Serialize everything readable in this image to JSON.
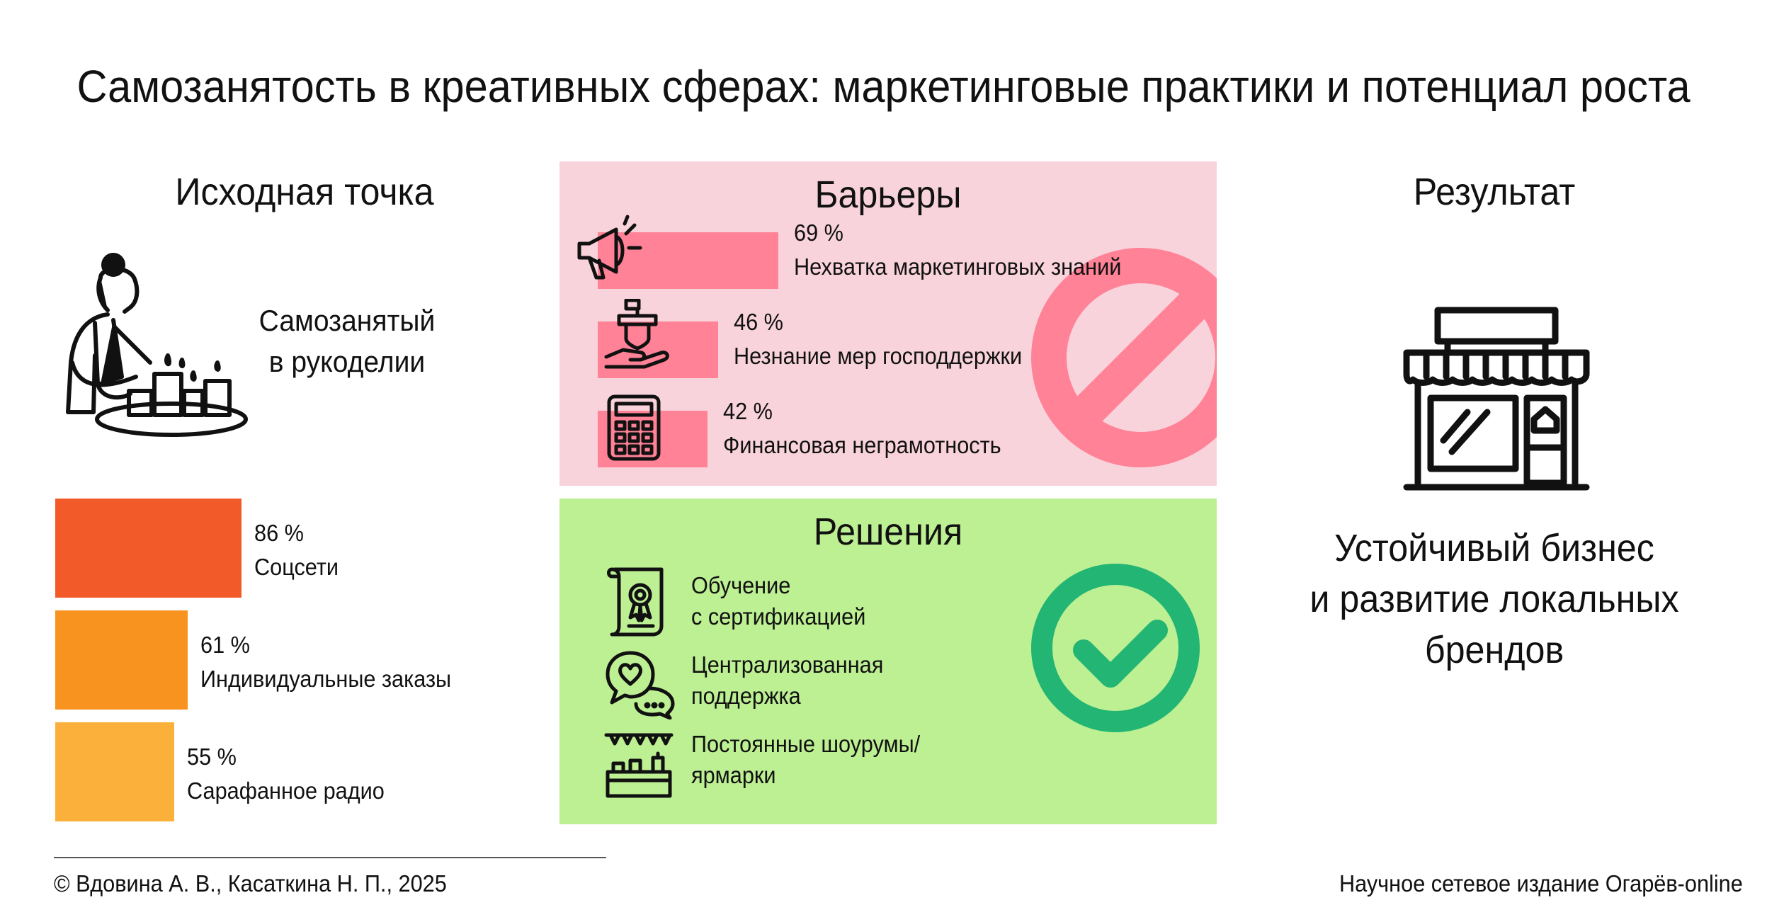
{
  "title": "Самозанятость в креативных сферах: маркетинговые практики и потенциал роста",
  "start": {
    "heading": "Исходная точка",
    "subject_line1": "Самозанятый",
    "subject_line2": "в рукоделии",
    "illustration_icon": "woman-making-candles-icon",
    "channels": [
      {
        "percent": "86 %",
        "value": 86,
        "label": "Соцсети",
        "color": "#f25a29"
      },
      {
        "percent": "61 %",
        "value": 61,
        "label": "Индивидуальные заказы",
        "color": "#f7931e"
      },
      {
        "percent": "55 %",
        "value": 55,
        "label": "Сарафанное радио",
        "color": "#fbb03b"
      }
    ]
  },
  "barriers": {
    "heading": "Барьеры",
    "color": "#ff8296",
    "badge_icon": "prohibition-icon",
    "items": [
      {
        "percent": "69 %",
        "value": 69,
        "label": "Нехватка маркетинговых знаний",
        "icon": "megaphone-icon"
      },
      {
        "percent": "46 %",
        "value": 46,
        "label": "Незнание мер господдержки",
        "icon": "state-support-hand-icon"
      },
      {
        "percent": "42 %",
        "value": 42,
        "label": "Финансовая неграмотность",
        "icon": "calculator-icon"
      }
    ]
  },
  "solutions": {
    "heading": "Решения",
    "badge_icon": "checkmark-circle-icon",
    "badge_color": "#22b573",
    "items": [
      {
        "line1": "Обучение",
        "line2": "с сертификацией",
        "icon": "certificate-icon"
      },
      {
        "line1": "Централизованная",
        "line2": "поддержка",
        "icon": "support-chat-icon"
      },
      {
        "line1": "Постоянные шоурумы/",
        "line2": "ярмарки",
        "icon": "fair-stall-icon"
      }
    ]
  },
  "result": {
    "heading": "Результат",
    "icon": "storefront-icon",
    "line1": "Устойчивый бизнес",
    "line2": "и развитие локальных",
    "line3": "брендов"
  },
  "footer": {
    "copyright": "© Вдовина А. В., Касаткина Н. П., 2025",
    "publisher": "Научное сетевое издание Огарёв-online"
  }
}
